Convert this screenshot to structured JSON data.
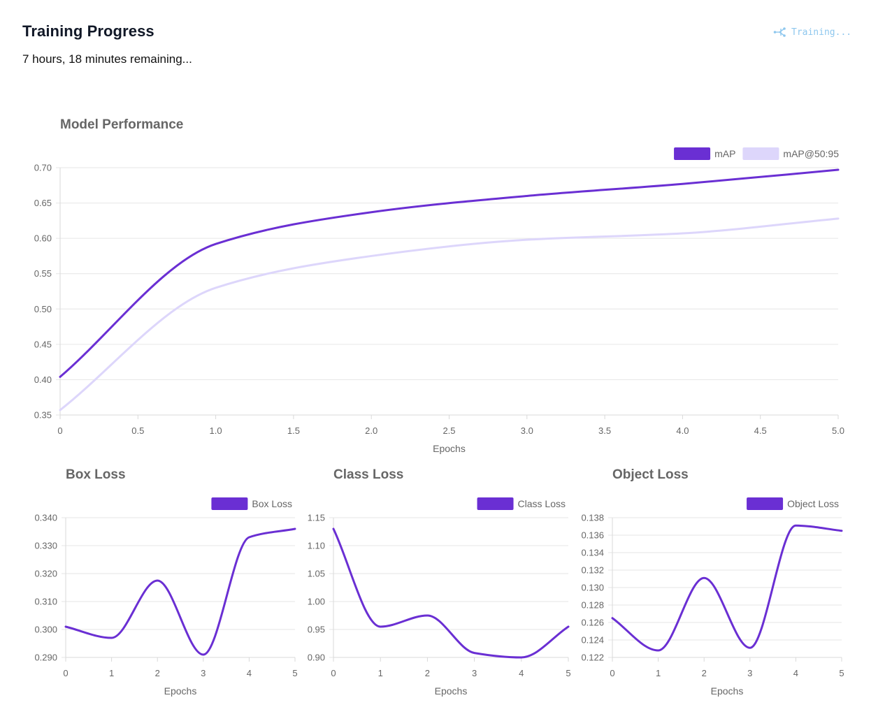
{
  "header": {
    "title": "Training Progress",
    "remaining": "7 hours, 18 minutes remaining...",
    "status": "Training..."
  },
  "icons": {
    "status_icon": "network-nodes-icon"
  },
  "colors": {
    "accent": "#6a2fd3",
    "accent_light": "#ddd6fb",
    "status_text": "#8ec7ee",
    "text_muted": "#666666",
    "grid": "#e6e6e6"
  },
  "chart_data": [
    {
      "id": "model-performance",
      "type": "line",
      "title": "Model Performance",
      "xlabel": "Epochs",
      "ylabel": "",
      "x": [
        0,
        1,
        2,
        3,
        4,
        5
      ],
      "xlim": [
        0,
        5
      ],
      "xticks": [
        "0",
        "0.5",
        "1.0",
        "1.5",
        "2.0",
        "2.5",
        "3.0",
        "3.5",
        "4.0",
        "4.5",
        "5.0"
      ],
      "ylim": [
        0.35,
        0.7
      ],
      "yticks": [
        "0.35",
        "0.40",
        "0.45",
        "0.50",
        "0.55",
        "0.60",
        "0.65",
        "0.70"
      ],
      "grid": true,
      "legend": "top-right",
      "series": [
        {
          "name": "mAP",
          "color": "#6a2fd3",
          "values": [
            0.404,
            0.592,
            0.637,
            0.66,
            0.677,
            0.697
          ]
        },
        {
          "name": "mAP@50:95",
          "color": "#ddd6fb",
          "values": [
            0.357,
            0.53,
            0.575,
            0.598,
            0.607,
            0.628
          ]
        }
      ]
    },
    {
      "id": "box-loss",
      "type": "line",
      "title": "Box Loss",
      "xlabel": "Epochs",
      "ylabel": "",
      "x": [
        0,
        1,
        2,
        3,
        4,
        5
      ],
      "xlim": [
        0,
        5
      ],
      "xticks": [
        "0",
        "1",
        "2",
        "3",
        "4",
        "5"
      ],
      "ylim": [
        0.29,
        0.34
      ],
      "yticks": [
        "0.290",
        "0.300",
        "0.310",
        "0.320",
        "0.330",
        "0.340"
      ],
      "grid": true,
      "legend": "top-right",
      "series": [
        {
          "name": "Box Loss",
          "color": "#6a2fd3",
          "values": [
            0.301,
            0.297,
            0.3175,
            0.291,
            0.333,
            0.336
          ]
        }
      ]
    },
    {
      "id": "class-loss",
      "type": "line",
      "title": "Class Loss",
      "xlabel": "Epochs",
      "ylabel": "",
      "x": [
        0,
        1,
        2,
        3,
        4,
        5
      ],
      "xlim": [
        0,
        5
      ],
      "xticks": [
        "0",
        "1",
        "2",
        "3",
        "4",
        "5"
      ],
      "ylim": [
        0.9,
        1.15
      ],
      "yticks": [
        "0.90",
        "0.95",
        "1.00",
        "1.05",
        "1.10",
        "1.15"
      ],
      "grid": true,
      "legend": "top-right",
      "series": [
        {
          "name": "Class Loss",
          "color": "#6a2fd3",
          "values": [
            1.13,
            0.955,
            0.975,
            0.908,
            0.9,
            0.955
          ]
        }
      ]
    },
    {
      "id": "object-loss",
      "type": "line",
      "title": "Object Loss",
      "xlabel": "Epochs",
      "ylabel": "",
      "x": [
        0,
        1,
        2,
        3,
        4,
        5
      ],
      "xlim": [
        0,
        5
      ],
      "xticks": [
        "0",
        "1",
        "2",
        "3",
        "4",
        "5"
      ],
      "ylim": [
        0.122,
        0.138
      ],
      "yticks": [
        "0.122",
        "0.124",
        "0.126",
        "0.128",
        "0.130",
        "0.132",
        "0.134",
        "0.136",
        "0.138"
      ],
      "grid": true,
      "legend": "top-right",
      "series": [
        {
          "name": "Object Loss",
          "color": "#6a2fd3",
          "values": [
            0.1265,
            0.1228,
            0.1311,
            0.1231,
            0.1371,
            0.1365
          ]
        }
      ]
    }
  ]
}
